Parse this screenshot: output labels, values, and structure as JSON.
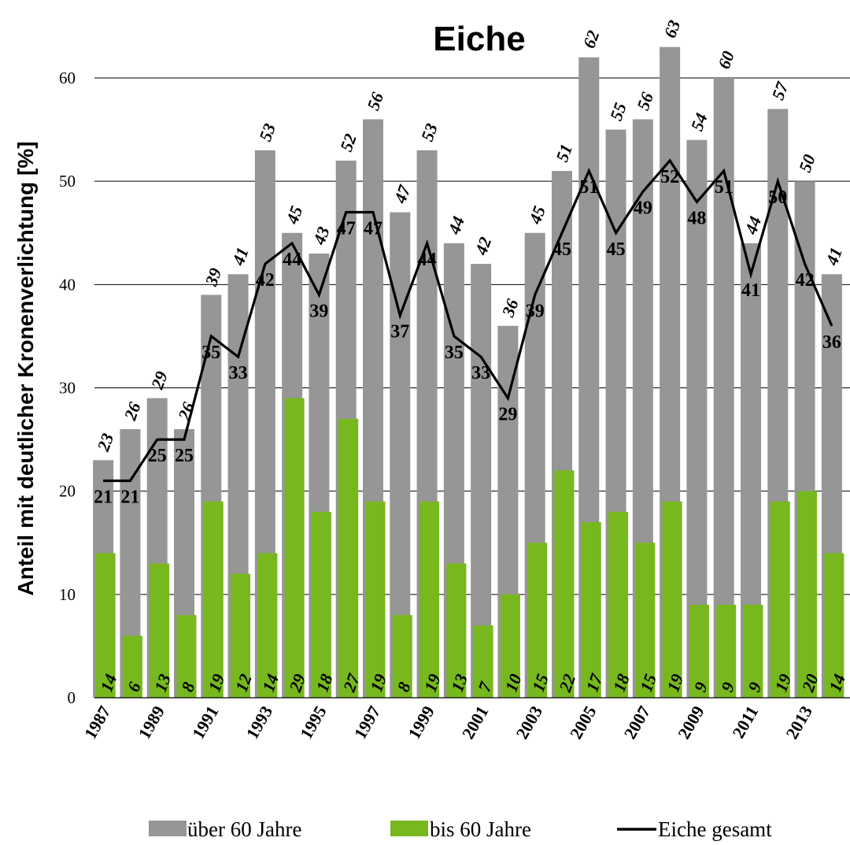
{
  "chart_data": {
    "type": "bar",
    "title": "Eiche",
    "ylabel": "Anteil mit deutlicher Kronenverlichtung [%]",
    "xlabel": "",
    "ylim": [
      0,
      60
    ],
    "yticks": [
      0,
      10,
      20,
      30,
      40,
      50,
      60
    ],
    "grid": true,
    "legend_position": "bottom",
    "categories": [
      1987,
      1988,
      1989,
      1990,
      1991,
      1992,
      1993,
      1994,
      1995,
      1996,
      1997,
      1998,
      1999,
      2000,
      2001,
      2002,
      2003,
      2004,
      2005,
      2006,
      2007,
      2008,
      2009,
      2010,
      2011,
      2012,
      2013,
      2014
    ],
    "x_tick_labels": [
      "1987",
      "1989",
      "1991",
      "1993",
      "1995",
      "1997",
      "1999",
      "2001",
      "2003",
      "2005",
      "2007",
      "2009",
      "2011",
      "2013"
    ],
    "series": [
      {
        "name": "über 60 Jahre",
        "kind": "bar",
        "color": "#969696",
        "values": [
          23,
          26,
          29,
          26,
          39,
          41,
          53,
          45,
          43,
          52,
          56,
          47,
          53,
          44,
          42,
          36,
          45,
          51,
          62,
          55,
          56,
          63,
          54,
          60,
          44,
          57,
          50,
          41
        ]
      },
      {
        "name": "bis 60 Jahre",
        "kind": "bar",
        "color": "#77b81e",
        "values": [
          14,
          6,
          13,
          8,
          19,
          12,
          14,
          29,
          18,
          27,
          19,
          8,
          19,
          13,
          7,
          10,
          15,
          22,
          17,
          18,
          15,
          19,
          9,
          9,
          9,
          19,
          20,
          14
        ]
      },
      {
        "name": "Eiche gesamt",
        "kind": "line",
        "color": "#000000",
        "values": [
          21,
          21,
          25,
          25,
          35,
          33,
          42,
          44,
          39,
          47,
          47,
          37,
          44,
          35,
          33,
          29,
          39,
          45,
          51,
          45,
          49,
          52,
          48,
          51,
          41,
          50,
          42,
          36
        ]
      }
    ]
  }
}
